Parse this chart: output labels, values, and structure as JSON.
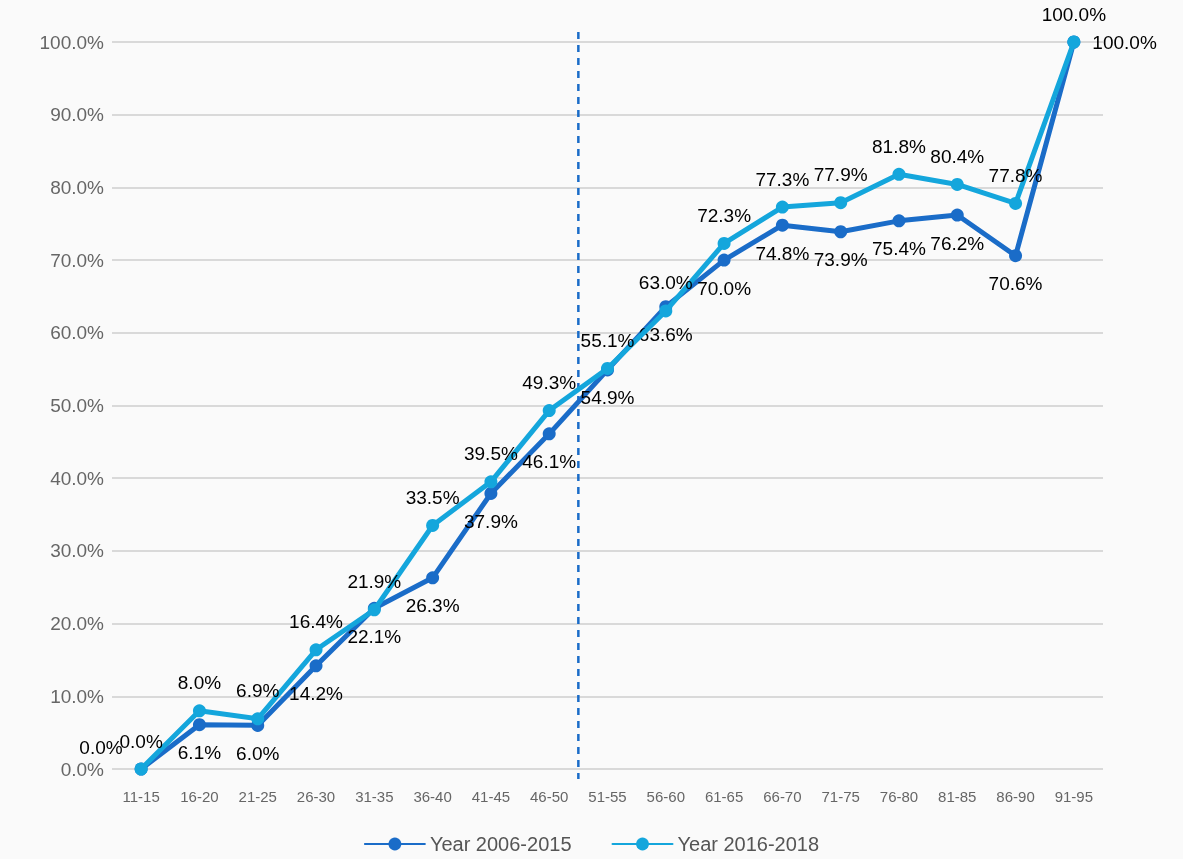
{
  "chart_data": {
    "type": "line",
    "categories": [
      "11-15",
      "16-20",
      "21-25",
      "26-30",
      "31-35",
      "36-40",
      "41-45",
      "46-50",
      "51-55",
      "56-60",
      "61-65",
      "66-70",
      "71-75",
      "76-80",
      "81-85",
      "86-90",
      "91-95"
    ],
    "series": [
      {
        "name": "Year 2006-2015",
        "color": "#1a6cc8",
        "values": [
          0.0,
          6.1,
          6.0,
          14.2,
          22.1,
          26.3,
          37.9,
          46.1,
          54.9,
          63.6,
          70.0,
          74.8,
          73.9,
          75.4,
          76.2,
          70.6,
          100.0
        ],
        "value_labels": [
          "0.0%",
          "6.1%",
          "6.0%",
          "14.2%",
          "22.1%",
          "26.3%",
          "37.9%",
          "46.1%",
          "54.9%",
          "63.6%",
          "70.0%",
          "74.8%",
          "73.9%",
          "75.4%",
          "76.2%",
          "70.6%",
          "100.0%"
        ]
      },
      {
        "name": "Year 2016-2018",
        "color": "#14a6dc",
        "values": [
          0.0,
          8.0,
          6.9,
          16.4,
          21.9,
          33.5,
          39.5,
          49.3,
          55.1,
          63.0,
          72.3,
          77.3,
          77.9,
          81.8,
          80.4,
          77.8,
          100.0
        ],
        "value_labels": [
          "0.0%",
          "8.0%",
          "6.9%",
          "16.4%",
          "21.9%",
          "33.5%",
          "39.5%",
          "49.3%",
          "55.1%",
          "63.0%",
          "72.3%",
          "77.3%",
          "77.9%",
          "81.8%",
          "80.4%",
          "77.8%",
          "100.0%"
        ]
      }
    ],
    "ylim": [
      0,
      100
    ],
    "yticks": [
      {
        "value": 0,
        "label": "0.0%"
      },
      {
        "value": 10,
        "label": "10.0%"
      },
      {
        "value": 20,
        "label": "20.0%"
      },
      {
        "value": 30,
        "label": "30.0%"
      },
      {
        "value": 40,
        "label": "40.0%"
      },
      {
        "value": 50,
        "label": "50.0%"
      },
      {
        "value": 60,
        "label": "60.0%"
      },
      {
        "value": 70,
        "label": "70.0%"
      },
      {
        "value": 80,
        "label": "80.0%"
      },
      {
        "value": 90,
        "label": "90.0%"
      },
      {
        "value": 100,
        "label": "100.0%"
      }
    ],
    "ref_lines": [
      {
        "axis": "x",
        "value": "46-50",
        "color": "#1a6cc8",
        "line_style": "dashed"
      }
    ],
    "grid": "y",
    "legend": "bottom",
    "marker": "circle",
    "line_style": "solid"
  }
}
